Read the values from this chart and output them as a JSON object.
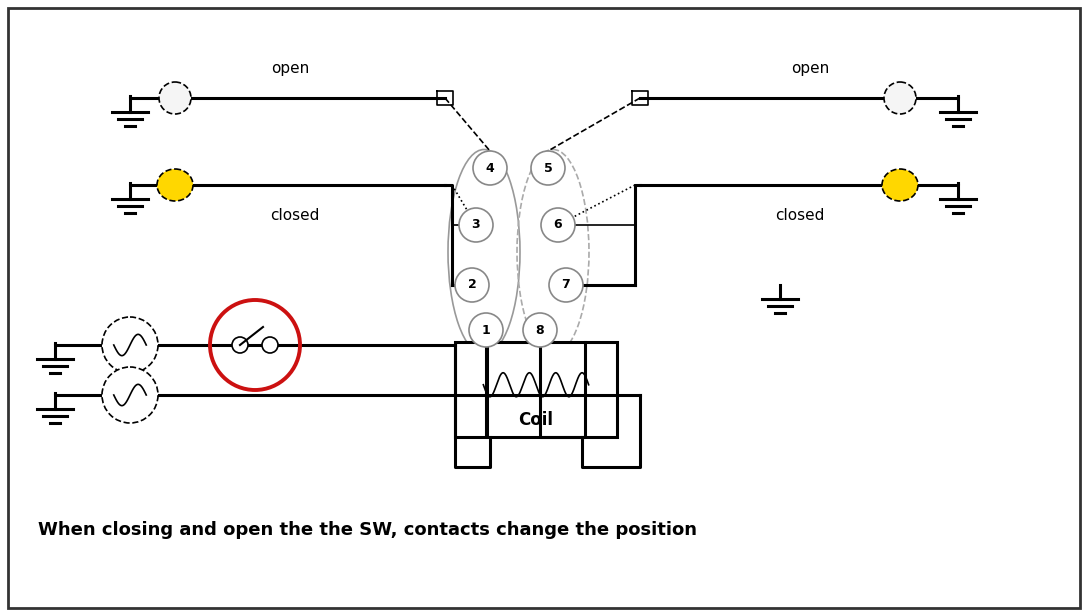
{
  "background": "#ffffff",
  "caption": "When closing and open the the SW, contacts change the position",
  "open_text": "open",
  "closed_text": "closed",
  "coil_text": "Coil",
  "pin_labels": [
    "1",
    "2",
    "3",
    "4",
    "5",
    "6",
    "7",
    "8"
  ],
  "sw_red": "#cc1111",
  "lamp_yellow": "#FFD700",
  "lamp_white": "#f5f5f5",
  "lw": 2.2,
  "lw_thin": 1.2
}
